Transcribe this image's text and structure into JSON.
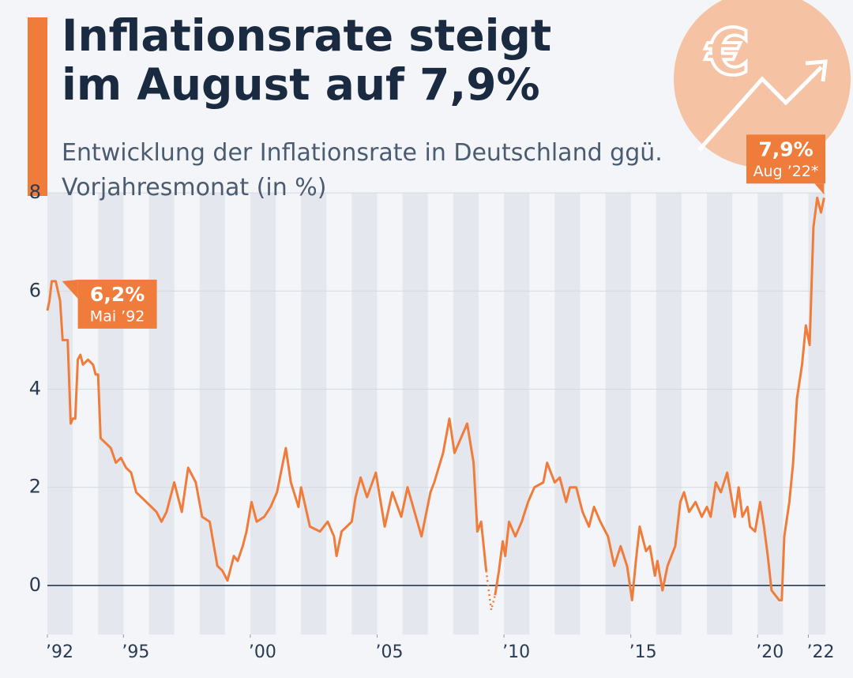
{
  "chart_data": {
    "type": "line",
    "title": "Inflationsrate steigt im August auf 7,9%",
    "subtitle": "Entwicklung der Inflationsrate in Deutschland ggü. Vorjahresmonat (in %)",
    "color": "#f07c3c",
    "xlim": [
      1992,
      2022.67
    ],
    "ylim": [
      -1,
      8
    ],
    "yticks": [
      0,
      2,
      4,
      6,
      8
    ],
    "xticks": [
      {
        "value": 1992,
        "label": "’92"
      },
      {
        "value": 1995,
        "label": "’95"
      },
      {
        "value": 2000,
        "label": "’00"
      },
      {
        "value": 2005,
        "label": "’05"
      },
      {
        "value": 2010,
        "label": "’10"
      },
      {
        "value": 2015,
        "label": "’15"
      },
      {
        "value": 2020,
        "label": "’20"
      },
      {
        "value": 2022,
        "label": "’22"
      }
    ],
    "grid": true,
    "series": [
      {
        "x": [
          1992.0,
          1992.08,
          1992.17,
          1992.33,
          1992.5,
          1992.6,
          1992.8,
          1992.92,
          1993.0,
          1993.1,
          1993.2,
          1993.3,
          1993.4,
          1993.6,
          1993.8,
          1993.9,
          1994.0,
          1994.1,
          1994.3,
          1994.5,
          1994.7,
          1994.9,
          1995.1,
          1995.3,
          1995.5,
          1995.7,
          1995.9,
          1996.1,
          1996.3,
          1996.5,
          1996.7,
          1997.0,
          1997.3,
          1997.55,
          1997.85,
          1998.1,
          1998.4,
          1998.7,
          1998.9,
          1999.1,
          1999.35,
          1999.5,
          1999.7,
          1999.85,
          2000.05,
          2000.25,
          2000.55,
          2000.8,
          2001.05,
          2001.4,
          2001.6,
          2001.9,
          2002.0,
          2002.35,
          2002.75,
          2003.05,
          2003.3,
          2003.4,
          2003.6,
          2004.0,
          2004.15,
          2004.35,
          2004.6,
          2004.95,
          2005.3,
          2005.6,
          2005.95,
          2006.2,
          2006.75,
          2007.1,
          2007.25,
          2007.6,
          2007.85,
          2008.05,
          2008.55,
          2008.8,
          2008.95,
          2009.1,
          2009.2,
          2009.3,
          2009.5,
          2009.65,
          2009.8,
          2009.95,
          2010.05,
          2010.2,
          2010.45,
          2010.7,
          2010.95,
          2011.2,
          2011.55,
          2011.7,
          2012.0,
          2012.2,
          2012.45,
          2012.6,
          2012.85,
          2013.1,
          2013.35,
          2013.55,
          2013.8,
          2014.1,
          2014.35,
          2014.6,
          2014.85,
          2015.05,
          2015.2,
          2015.35,
          2015.6,
          2015.75,
          2015.95,
          2016.05,
          2016.25,
          2016.45,
          2016.75,
          2016.95,
          2017.1,
          2017.3,
          2017.55,
          2017.8,
          2018.0,
          2018.15,
          2018.35,
          2018.55,
          2018.8,
          2019.0,
          2019.1,
          2019.25,
          2019.4,
          2019.6,
          2019.7,
          2019.9,
          2020.1,
          2020.25,
          2020.4,
          2020.55,
          2020.85,
          2020.95,
          2021.05,
          2021.25,
          2021.4,
          2021.55,
          2021.75,
          2021.9,
          2022.05,
          2022.2,
          2022.35,
          2022.5,
          2022.62
        ],
        "values": [
          5.6,
          5.8,
          6.2,
          6.2,
          5.8,
          5.0,
          5.0,
          3.3,
          3.4,
          3.4,
          4.6,
          4.7,
          4.5,
          4.6,
          4.5,
          4.3,
          4.3,
          3.0,
          2.9,
          2.8,
          2.5,
          2.6,
          2.4,
          2.3,
          1.9,
          1.8,
          1.7,
          1.6,
          1.5,
          1.3,
          1.5,
          2.1,
          1.5,
          2.4,
          2.1,
          1.4,
          1.3,
          0.4,
          0.3,
          0.1,
          0.6,
          0.5,
          0.8,
          1.1,
          1.7,
          1.3,
          1.4,
          1.6,
          1.9,
          2.8,
          2.1,
          1.6,
          2.0,
          1.2,
          1.1,
          1.3,
          1.0,
          0.6,
          1.1,
          1.3,
          1.8,
          2.2,
          1.8,
          2.3,
          1.2,
          1.9,
          1.4,
          2.0,
          1.0,
          1.9,
          2.1,
          2.7,
          3.4,
          2.7,
          3.3,
          2.5,
          1.1,
          1.3,
          0.8,
          0.3,
          null,
          -0.2,
          0.3,
          0.9,
          0.6,
          1.3,
          1.0,
          1.3,
          1.7,
          2.0,
          2.1,
          2.5,
          2.1,
          2.2,
          1.7,
          2.0,
          2.0,
          1.5,
          1.2,
          1.6,
          1.3,
          1.0,
          0.4,
          0.8,
          0.4,
          -0.3,
          0.5,
          1.2,
          0.7,
          0.8,
          0.2,
          0.5,
          -0.1,
          0.4,
          0.8,
          1.7,
          1.9,
          1.5,
          1.7,
          1.4,
          1.6,
          1.4,
          2.1,
          1.9,
          2.3,
          1.7,
          1.4,
          2.0,
          1.4,
          1.6,
          1.2,
          1.1,
          1.7,
          1.2,
          0.6,
          -0.1,
          -0.3,
          -0.3,
          1.0,
          1.7,
          2.5,
          3.8,
          4.5,
          5.3,
          4.9,
          7.3,
          7.9,
          7.6,
          7.9
        ]
      },
      {
        "x": [
          2009.3,
          2009.5,
          2009.65
        ],
        "values": [
          0.3,
          -0.5,
          -0.2
        ],
        "dotted": true
      }
    ],
    "annotations": [
      {
        "label": "6,2%",
        "sublabel": "Mai ’92",
        "x": 1992.33,
        "y": 6.2,
        "side": "right"
      },
      {
        "label": "7,9%",
        "sublabel": "Aug ’22*",
        "x": 2022.62,
        "y": 7.9,
        "side": "top"
      }
    ]
  }
}
